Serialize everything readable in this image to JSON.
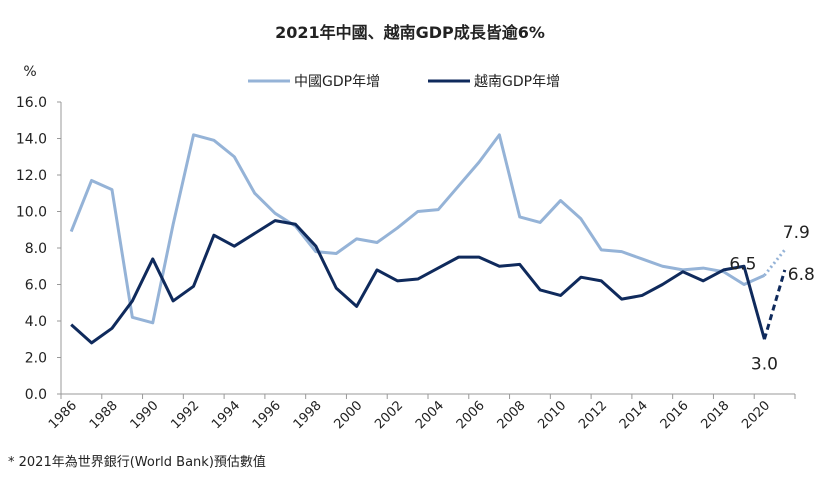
{
  "chart_data": {
    "type": "line",
    "title": "2021年中國、越南GDP成長皆逾6%",
    "ylabel": "%",
    "xlabel": "",
    "ylim": [
      0,
      16
    ],
    "yticks": [
      "0.0",
      "2.0",
      "4.0",
      "6.0",
      "8.0",
      "10.0",
      "12.0",
      "14.0",
      "16.0"
    ],
    "ytick_values": [
      0,
      2,
      4,
      6,
      8,
      10,
      12,
      14,
      16
    ],
    "x": [
      1986,
      1987,
      1988,
      1989,
      1990,
      1991,
      1992,
      1993,
      1994,
      1995,
      1996,
      1997,
      1998,
      1999,
      2000,
      2001,
      2002,
      2003,
      2004,
      2005,
      2006,
      2007,
      2008,
      2009,
      2010,
      2011,
      2012,
      2013,
      2014,
      2015,
      2016,
      2017,
      2018,
      2019,
      2020,
      2021
    ],
    "xtick_labels": [
      "1986",
      "1988",
      "1990",
      "1992",
      "1994",
      "1996",
      "1998",
      "2000",
      "2002",
      "2004",
      "2006",
      "2008",
      "2010",
      "2012",
      "2014",
      "2016",
      "2018",
      "2020"
    ],
    "grid": false,
    "legend_position": "top-center",
    "series": [
      {
        "name": "中國GDP年增",
        "color": "#95b3d7",
        "forecast_style": "dotted",
        "values": [
          8.9,
          11.7,
          11.2,
          4.2,
          3.9,
          9.3,
          14.2,
          13.9,
          13.0,
          11.0,
          9.9,
          9.2,
          7.8,
          7.7,
          8.5,
          8.3,
          9.1,
          10.0,
          10.1,
          11.4,
          12.7,
          14.2,
          9.7,
          9.4,
          10.6,
          9.6,
          7.9,
          7.8,
          7.4,
          7.0,
          6.8,
          6.9,
          6.7,
          6.0,
          6.5,
          7.9
        ]
      },
      {
        "name": "越南GDP年增",
        "color": "#0f2a5c",
        "forecast_style": "dashed",
        "values": [
          3.8,
          2.8,
          3.6,
          5.1,
          7.4,
          5.1,
          5.9,
          8.7,
          8.1,
          8.8,
          9.5,
          9.3,
          8.1,
          5.8,
          4.8,
          6.8,
          6.2,
          6.3,
          6.9,
          7.5,
          7.5,
          7.0,
          7.1,
          5.7,
          5.4,
          6.4,
          6.2,
          5.2,
          5.4,
          6.0,
          6.7,
          6.2,
          6.8,
          7.0,
          3.0,
          6.8
        ]
      }
    ],
    "annotations": [
      {
        "text": "6.5",
        "series": 0,
        "x": 2020
      },
      {
        "text": "7.9",
        "series": 0,
        "x": 2021
      },
      {
        "text": "3.0",
        "series": 1,
        "x": 2020
      },
      {
        "text": "6.8",
        "series": 1,
        "x": 2021
      }
    ],
    "footnote": "* 2021年為世界銀行(World Bank)預估數值"
  }
}
